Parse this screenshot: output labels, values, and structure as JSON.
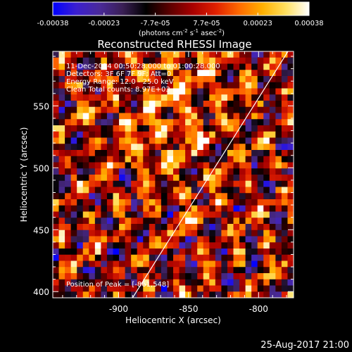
{
  "colors": {
    "background": "#000000",
    "foreground": "#ffffff",
    "colormap": [
      "#0000ff",
      "#3b1fd0",
      "#4a2a9a",
      "#3a1f55",
      "#000000",
      "#5a0000",
      "#a80000",
      "#e02000",
      "#ff6a00",
      "#ffb000",
      "#ffe060",
      "#ffffff"
    ]
  },
  "colorbar": {
    "ticks": [
      "-0.00038",
      "-0.00023",
      "-7.7e-05",
      "7.7e-05",
      "0.00023",
      "0.00038"
    ],
    "unit_parts": [
      "(photons cm",
      "-2",
      " s",
      "-1",
      " asec",
      "-2",
      ")"
    ]
  },
  "timestamp": "25-Aug-2017 21:00",
  "chart_data": {
    "type": "heatmap",
    "title": "Reconstructed RHESSI Image",
    "xlabel": "Heliocentric X (arcsec)",
    "ylabel": "Heliocentric Y (arcsec)",
    "xlim": [
      -947,
      -775
    ],
    "ylim": [
      395,
      594
    ],
    "xticks": [
      -900,
      -850,
      -800
    ],
    "yticks": [
      400,
      450,
      500,
      550
    ],
    "color_range": [
      -0.00038,
      0.00038
    ],
    "annotations": [
      "11-Dec-2014 00:50:28.000 to 01:00:28.000",
      "Detectors: 3F 6F 7F 9F; Att=0",
      "Energy Range: 12.0 - 25.0 keV",
      "Clean    Total counts: 8.97E+03"
    ],
    "peak_label": "Position of Peak = [-861,548]",
    "peak_position": [
      -861,
      548
    ],
    "limb_line": [
      [
        -890,
        395
      ],
      [
        -779,
        594
      ]
    ],
    "grid": false
  }
}
